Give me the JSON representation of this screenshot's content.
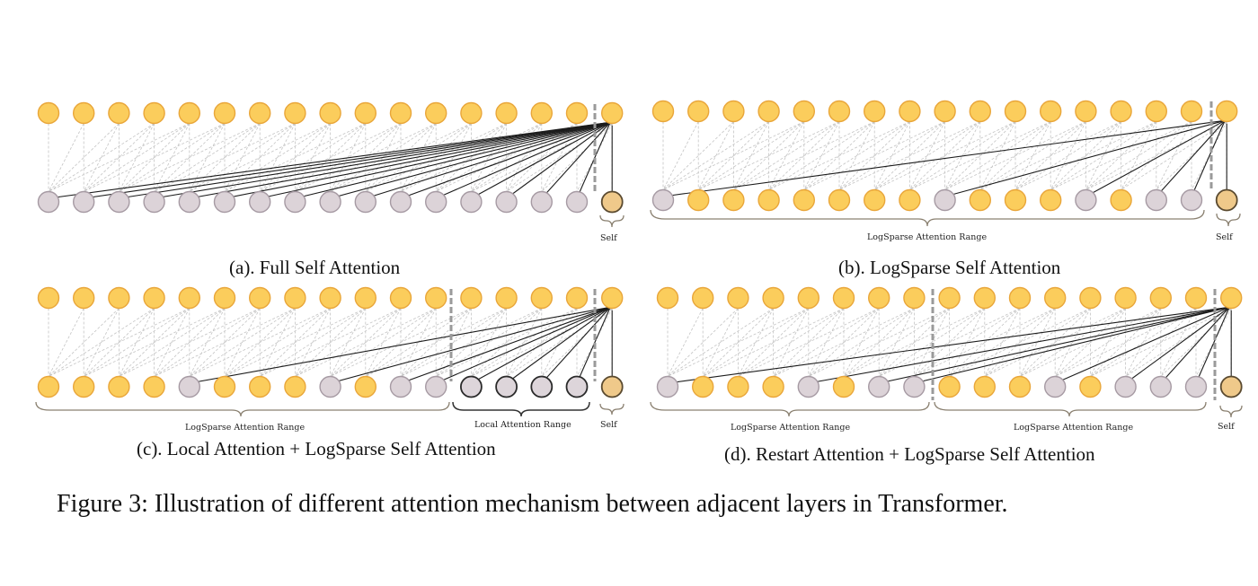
{
  "figure_caption": "Figure 3: Illustration of different attention mechanism between adjacent layers in Transformer.",
  "colors": {
    "query_node": "#fbcd5c",
    "query_stroke": "#e9a63a",
    "attended_node": "#dcd3d8",
    "attended_stroke": "#a69aa3",
    "local_node": "#ddd5da",
    "self_node": "#efc98a",
    "faint_line": "#c4c4c4",
    "attention_line": "#1c1c1c"
  },
  "panels": [
    {
      "id": "a",
      "caption": "(a). Full Self Attention",
      "n": 17,
      "bottom_pattern": "GGGGGGGGGGGGGGGGS",
      "attended": [
        0,
        1,
        2,
        3,
        4,
        5,
        6,
        7,
        8,
        9,
        10,
        11,
        12,
        13,
        14,
        15
      ],
      "self_label": "Self",
      "range_labels": []
    },
    {
      "id": "b",
      "caption": "(b). LogSparse Self Attention",
      "n": 17,
      "bottom_pattern": "GYYYYYYYGYYYGYGGS",
      "attended": [
        0,
        8,
        12,
        14,
        15
      ],
      "self_label": "Self",
      "range_labels": [
        "LogSparse Attention Range"
      ]
    },
    {
      "id": "c",
      "caption": "(c). Local Attention + LogSparse Self Attention",
      "n": 17,
      "bottom_pattern": "YYYYGYYYGYGGLLLLS",
      "attended": [
        4,
        8,
        10,
        11,
        12,
        13,
        14,
        15
      ],
      "self_label": "Self",
      "range_labels": [
        "LogSparse Attention Range",
        "Local Attention Range"
      ]
    },
    {
      "id": "d",
      "caption": "(d). Restart Attention + LogSparse Self Attention",
      "n": 17,
      "bottom_pattern": "GYYYGYGGYYYGYGGGS",
      "attended": [
        0,
        4,
        6,
        7,
        11,
        13,
        14,
        15
      ],
      "self_label": "Self",
      "range_labels": [
        "LogSparse Attention Range",
        "LogSparse Attention Range"
      ]
    }
  ]
}
